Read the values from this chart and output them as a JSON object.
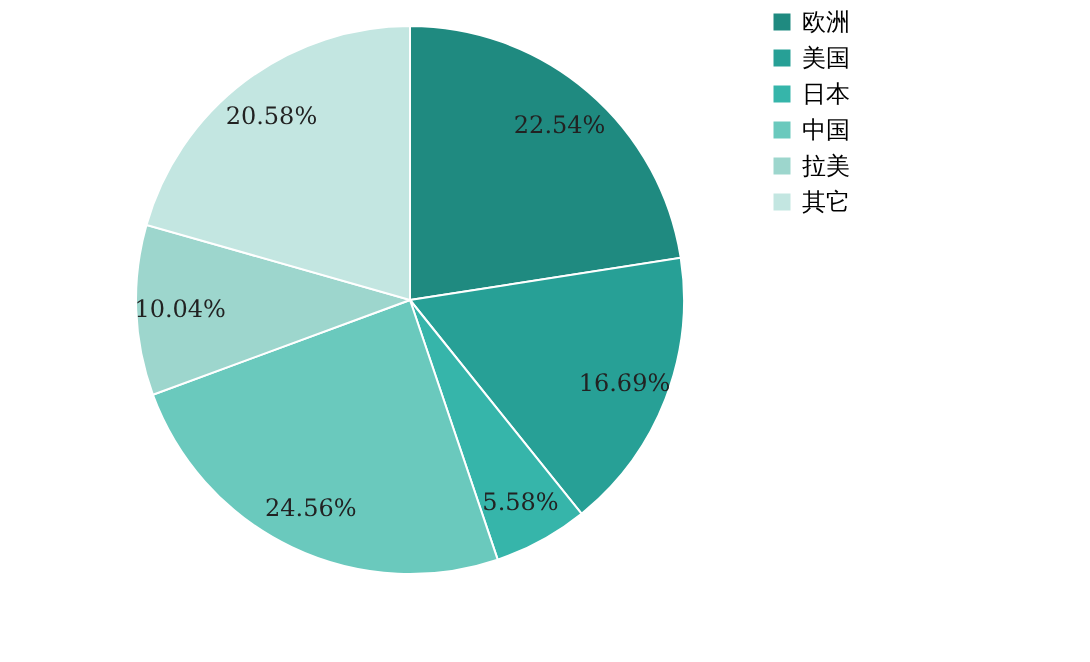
{
  "chart_data": {
    "type": "pie",
    "categories": [
      "欧洲",
      "美国",
      "日本",
      "中国",
      "拉美",
      "其它"
    ],
    "values": [
      22.54,
      16.69,
      5.58,
      24.56,
      10.04,
      20.58
    ],
    "colors": [
      "#1f8a80",
      "#27a096",
      "#36b5aa",
      "#6ac9bd",
      "#9dd6cd",
      "#c3e6e1"
    ],
    "value_labels": [
      "22.54%",
      "16.69%",
      "5.58%",
      "24.56%",
      "10.04%",
      "20.58%"
    ],
    "legend": "right"
  }
}
